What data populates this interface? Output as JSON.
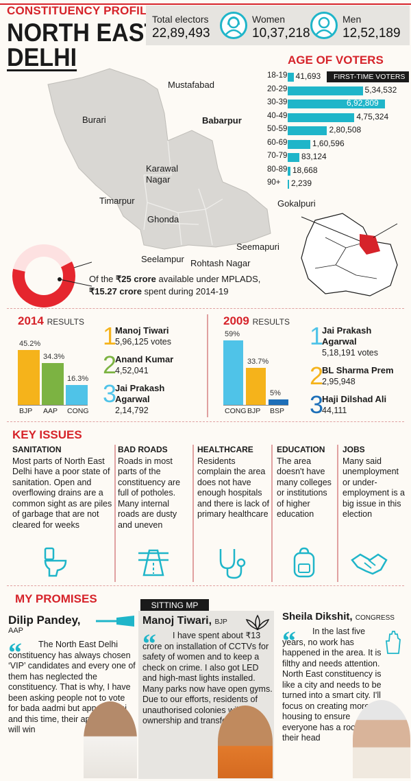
{
  "header": {
    "kicker": "CONSTITUENCY PROFILE",
    "title_line1": "NORTH EAST",
    "title_line2": "DELHI"
  },
  "electors": {
    "total_label": "Total electors",
    "total_value": "22,89,493",
    "women_label": "Women",
    "women_value": "10,37,218",
    "men_label": "Men",
    "men_value": "12,52,189"
  },
  "age_of_voters": {
    "title": "AGE OF VOTERS",
    "first_time_tag": "FIRST-TIME VOTERS",
    "rows": [
      {
        "label": "18-19",
        "value": "41,693",
        "num": 41693
      },
      {
        "label": "20-29",
        "value": "5,34,532",
        "num": 534532
      },
      {
        "label": "30-39",
        "value": "6,92,809",
        "num": 692809
      },
      {
        "label": "40-49",
        "value": "4,75,324",
        "num": 475324
      },
      {
        "label": "50-59",
        "value": "2,80,508",
        "num": 280508
      },
      {
        "label": "60-69",
        "value": "1,60,596",
        "num": 160596
      },
      {
        "label": "70-79",
        "value": "83,124",
        "num": 83124
      },
      {
        "label": "80-89",
        "value": "18,668",
        "num": 18668
      },
      {
        "label": "90+",
        "value": "2,239",
        "num": 2239
      }
    ]
  },
  "map": {
    "areas": [
      "Mustafabad",
      "Burari",
      "Babarpur",
      "Karawal Nagar",
      "Timarpur",
      "Gokalpuri",
      "Ghonda",
      "Seemapuri",
      "Seelampur",
      "Rohtash Nagar"
    ]
  },
  "mplads": {
    "line1_pre": "Of the ",
    "line1_bold": "₹25 crore",
    "line1_post": " available under MPLADS,",
    "line2_bold": "₹15.27 crore",
    "line2_post": " spent during 2014-19",
    "spent_fraction": 0.6108
  },
  "results_2014": {
    "year": "2014",
    "label": "RESULTS",
    "bars": [
      {
        "party": "BJP",
        "pct_label": "45.2%",
        "pct": 45.2,
        "color": "#f5b31b"
      },
      {
        "party": "AAP",
        "pct_label": "34.3%",
        "pct": 34.3,
        "color": "#7cb342"
      },
      {
        "party": "CONG",
        "pct_label": "16.3%",
        "pct": 16.3,
        "color": "#4fc3e8"
      }
    ],
    "candidates": [
      {
        "rank": "1",
        "name": "Manoj Tiwari",
        "votes": "5,96,125 votes",
        "color": "#f5b31b"
      },
      {
        "rank": "2",
        "name": "Anand Kumar",
        "votes": "4,52,041",
        "color": "#7cb342"
      },
      {
        "rank": "3",
        "name_line1": "Jai Prakash",
        "name_line2": "Agarwal",
        "votes": "2,14,792",
        "color": "#4fc3e8"
      }
    ]
  },
  "results_2009": {
    "year": "2009",
    "label": "RESULTS",
    "bars": [
      {
        "party": "CONG",
        "pct_label": "59%",
        "pct": 59,
        "color": "#4fc3e8"
      },
      {
        "party": "BJP",
        "pct_label": "33.7%",
        "pct": 33.7,
        "color": "#f5b31b"
      },
      {
        "party": "BSP",
        "pct_label": "5%",
        "pct": 5,
        "color": "#1d6fb8"
      }
    ],
    "candidates": [
      {
        "rank": "1",
        "name_line1": "Jai Prakash",
        "name_line2": "Agarwal",
        "votes": "5,18,191 votes",
        "color": "#4fc3e8"
      },
      {
        "rank": "2",
        "name": "BL Sharma Prem",
        "votes": "2,95,948",
        "color": "#f5b31b"
      },
      {
        "rank": "3",
        "name": "Haji Dilshad Ali",
        "votes": "44,111",
        "color": "#1d6fb8"
      }
    ]
  },
  "key_issues": {
    "title": "KEY ISSUES",
    "items": [
      {
        "heading": "SANITATION",
        "text": "Most parts of North East Delhi have a poor state of sanitation. Open and overflowing drains are a common sight as are piles of garbage that are not cleared for weeks",
        "icon": "toilet-icon"
      },
      {
        "heading": "BAD ROADS",
        "text": "Roads in most parts of the constituency are full of potholes. Many internal roads are dusty and uneven",
        "icon": "road-icon"
      },
      {
        "heading": "HEALTHCARE",
        "text": "Residents complain the area does not have enough hospitals and there is lack of primary healthcare",
        "icon": "stethoscope-icon"
      },
      {
        "heading": "EDUCATION",
        "text": "The area doesn't have many colleges or institutions of higher education",
        "icon": "backpack-icon"
      },
      {
        "heading": "JOBS",
        "text": "Many said unemployment or under-employment is a big issue in this election",
        "icon": "handshake-icon"
      }
    ]
  },
  "promises": {
    "title": "MY PROMISES",
    "sitting_tag": "SITTING MP",
    "candidates": [
      {
        "name": "Dilip Pandey,",
        "party": "AAP",
        "quote": "The North East Delhi constituency has always chosen ‘VIP’ candidates and every one of them has neglected the constituency. That is why, I have been asking people not to vote for bada aadmi but apna aadmi and this time, their apna aadmi will win"
      },
      {
        "name": "Manoj Tiwari,",
        "party": "BJP",
        "quote": "I have spent about ₹13 crore on installation of CCTVs for safety of women and to keep a check on crime. I also got LED and high-mast lights installed. Many parks now have open gyms. Due to our efforts, residents of unauthorised colonies will get ownership and transfer rights"
      },
      {
        "name": "Sheila Dikshit,",
        "party": "CONGRESS",
        "quote": "In the last five years, no work has happened in the area. It is filthy and needs attention. North East constituency is like a city and needs to be turned into a smart city. I'll focus on creating more housing to ensure everyone has a roof over their head"
      }
    ]
  }
}
